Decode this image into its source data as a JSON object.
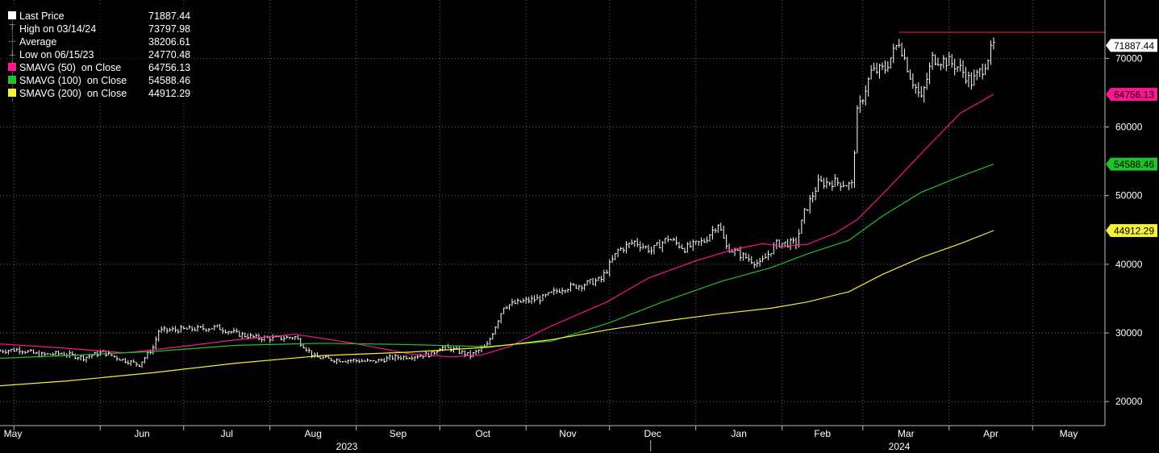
{
  "legend": [
    {
      "name": "Last Price",
      "value": "71887.44",
      "color": "#ffffff",
      "marker": "square"
    },
    {
      "name": "High on 03/14/24",
      "value": "73797.98",
      "color": "#aaaaaa",
      "marker": "high"
    },
    {
      "name": "Average",
      "value": "38206.61",
      "color": "#aaaaaa",
      "marker": "avg"
    },
    {
      "name": "Low on 06/15/23",
      "value": "24770.48",
      "color": "#aaaaaa",
      "marker": "low"
    },
    {
      "name": "SMAVG (50)  on Close",
      "value": "64756.13",
      "color": "#ff1493",
      "marker": "square"
    },
    {
      "name": "SMAVG (100)  on Close",
      "value": "54588.46",
      "color": "#22c02a",
      "marker": "square"
    },
    {
      "name": "SMAVG (200)  on Close",
      "value": "44912.29",
      "color": "#f5f03c",
      "marker": "square"
    }
  ],
  "chart_data": {
    "type": "line",
    "x_axis": {
      "months": [
        "May",
        "Jun",
        "Jul",
        "Aug",
        "Sep",
        "Oct",
        "Nov",
        "Dec",
        "Jan",
        "Feb",
        "Mar",
        "Apr",
        "May"
      ],
      "years": [
        "2023",
        "2024"
      ],
      "range": [
        "2023-04-26",
        "2024-05-27"
      ]
    },
    "y_axis": {
      "ticks": [
        20000,
        30000,
        40000,
        50000,
        60000,
        70000
      ],
      "tick_labels": [
        "20000",
        "30000",
        "40000",
        "50000",
        "60000",
        "70000"
      ],
      "range": [
        16500,
        78500
      ],
      "position": "right"
    },
    "grid": true,
    "legend_position": "top-left",
    "series": [
      {
        "name": "Last Price",
        "color": "#ffffff",
        "style": "bars",
        "points": [
          [
            "2023-04-26",
            27400
          ],
          [
            "2023-05-03",
            27600
          ],
          [
            "2023-05-10",
            26800
          ],
          [
            "2023-05-18",
            27000
          ],
          [
            "2023-05-26",
            26400
          ],
          [
            "2023-06-02",
            27200
          ],
          [
            "2023-06-09",
            26100
          ],
          [
            "2023-06-15",
            25400
          ],
          [
            "2023-06-20",
            27900
          ],
          [
            "2023-06-22",
            30300
          ],
          [
            "2023-06-30",
            30500
          ],
          [
            "2023-07-06",
            30600
          ],
          [
            "2023-07-13",
            30800
          ],
          [
            "2023-07-20",
            29900
          ],
          [
            "2023-07-27",
            29300
          ],
          [
            "2023-08-03",
            29200
          ],
          [
            "2023-08-10",
            29400
          ],
          [
            "2023-08-17",
            26500
          ],
          [
            "2023-08-24",
            26100
          ],
          [
            "2023-08-31",
            26000
          ],
          [
            "2023-09-07",
            25800
          ],
          [
            "2023-09-14",
            26400
          ],
          [
            "2023-09-21",
            26600
          ],
          [
            "2023-09-28",
            26900
          ],
          [
            "2023-10-01",
            27900
          ],
          [
            "2023-10-05",
            27700
          ],
          [
            "2023-10-12",
            26700
          ],
          [
            "2023-10-18",
            28200
          ],
          [
            "2023-10-24",
            33900
          ],
          [
            "2023-10-31",
            34600
          ],
          [
            "2023-11-07",
            35100
          ],
          [
            "2023-11-14",
            36500
          ],
          [
            "2023-11-21",
            37000
          ],
          [
            "2023-11-28",
            37800
          ],
          [
            "2023-12-04",
            42000
          ],
          [
            "2023-12-10",
            43300
          ],
          [
            "2023-12-16",
            42000
          ],
          [
            "2023-12-22",
            43800
          ],
          [
            "2023-12-28",
            42300
          ],
          [
            "2024-01-04",
            43400
          ],
          [
            "2024-01-09",
            46000
          ],
          [
            "2024-01-12",
            42500
          ],
          [
            "2024-01-18",
            41200
          ],
          [
            "2024-01-24",
            40000
          ],
          [
            "2024-01-30",
            43000
          ],
          [
            "2024-02-06",
            43100
          ],
          [
            "2024-02-09",
            47500
          ],
          [
            "2024-02-14",
            51800
          ],
          [
            "2024-02-20",
            52000
          ],
          [
            "2024-02-26",
            51500
          ],
          [
            "2024-02-28",
            62000
          ],
          [
            "2024-03-04",
            68000
          ],
          [
            "2024-03-09",
            68500
          ],
          [
            "2024-03-14",
            72500
          ],
          [
            "2024-03-18",
            67500
          ],
          [
            "2024-03-22",
            64000
          ],
          [
            "2024-03-26",
            70000
          ],
          [
            "2024-04-01",
            69500
          ],
          [
            "2024-04-05",
            68500
          ],
          [
            "2024-04-09",
            66500
          ],
          [
            "2024-04-13",
            68500
          ],
          [
            "2024-04-17",
            71887.44
          ]
        ]
      },
      {
        "name": "SMAVG (50)  on Close",
        "color": "#ff1493",
        "style": "line",
        "points": [
          [
            "2023-04-26",
            28400
          ],
          [
            "2023-05-15",
            27900
          ],
          [
            "2023-06-10",
            27100
          ],
          [
            "2023-06-30",
            28000
          ],
          [
            "2023-07-20",
            29000
          ],
          [
            "2023-08-10",
            29800
          ],
          [
            "2023-08-31",
            28500
          ],
          [
            "2023-09-21",
            26900
          ],
          [
            "2023-10-05",
            26500
          ],
          [
            "2023-10-16",
            26800
          ],
          [
            "2023-10-26",
            28000
          ],
          [
            "2023-11-10",
            31000
          ],
          [
            "2023-11-30",
            34500
          ],
          [
            "2023-12-15",
            38000
          ],
          [
            "2024-01-01",
            40500
          ],
          [
            "2024-01-15",
            42200
          ],
          [
            "2024-01-25",
            43000
          ],
          [
            "2024-02-01",
            42600
          ],
          [
            "2024-02-10",
            42900
          ],
          [
            "2024-02-20",
            44500
          ],
          [
            "2024-02-28",
            46500
          ],
          [
            "2024-03-10",
            51000
          ],
          [
            "2024-03-24",
            57000
          ],
          [
            "2024-04-05",
            62000
          ],
          [
            "2024-04-17",
            64756.13
          ]
        ]
      },
      {
        "name": "SMAVG (100)  on Close",
        "color": "#22c02a",
        "style": "line",
        "points": [
          [
            "2023-04-26",
            26300
          ],
          [
            "2023-05-20",
            26700
          ],
          [
            "2023-06-20",
            27300
          ],
          [
            "2023-07-20",
            28200
          ],
          [
            "2023-08-20",
            28500
          ],
          [
            "2023-09-20",
            28300
          ],
          [
            "2023-10-18",
            28000
          ],
          [
            "2023-11-10",
            28800
          ],
          [
            "2023-12-01",
            31500
          ],
          [
            "2023-12-20",
            34500
          ],
          [
            "2024-01-10",
            37500
          ],
          [
            "2024-01-28",
            39500
          ],
          [
            "2024-02-10",
            41500
          ],
          [
            "2024-02-25",
            43500
          ],
          [
            "2024-03-08",
            47000
          ],
          [
            "2024-03-22",
            50500
          ],
          [
            "2024-04-05",
            52800
          ],
          [
            "2024-04-17",
            54588.46
          ]
        ]
      },
      {
        "name": "SMAVG (200)  on Close",
        "color": "#f5f03c",
        "style": "line",
        "points": [
          [
            "2023-04-26",
            22300
          ],
          [
            "2023-05-20",
            23000
          ],
          [
            "2023-06-20",
            24200
          ],
          [
            "2023-07-20",
            25600
          ],
          [
            "2023-08-20",
            26700
          ],
          [
            "2023-09-20",
            27200
          ],
          [
            "2023-10-18",
            27900
          ],
          [
            "2023-11-10",
            29000
          ],
          [
            "2023-12-01",
            30500
          ],
          [
            "2023-12-20",
            31700
          ],
          [
            "2024-01-10",
            32800
          ],
          [
            "2024-01-28",
            33600
          ],
          [
            "2024-02-10",
            34500
          ],
          [
            "2024-02-25",
            36000
          ],
          [
            "2024-03-08",
            38500
          ],
          [
            "2024-03-22",
            41000
          ],
          [
            "2024-04-05",
            43000
          ],
          [
            "2024-04-17",
            44912.29
          ]
        ]
      }
    ],
    "annotations": [
      {
        "type": "hline",
        "value": 73797.98,
        "color": "#e0202a",
        "from": "2024-03-14"
      }
    ],
    "value_tags": [
      {
        "label": "71887.44",
        "value": 71887.44,
        "bg": "#ffffff",
        "fg": "#000000"
      },
      {
        "label": "64756.13",
        "value": 64756.13,
        "bg": "#ff1493",
        "fg": "#000000"
      },
      {
        "label": "54588.46",
        "value": 54588.46,
        "bg": "#22c02a",
        "fg": "#000000"
      },
      {
        "label": "44912.29",
        "value": 44912.29,
        "bg": "#f5f03c",
        "fg": "#000000"
      }
    ]
  }
}
